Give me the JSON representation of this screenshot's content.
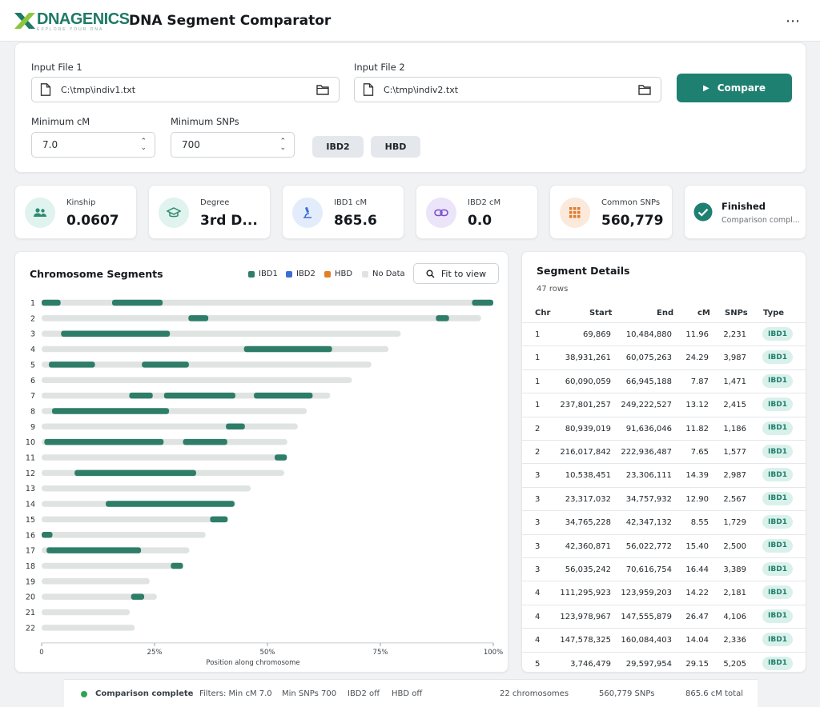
{
  "header": {
    "logo_name": "DNAGENICS",
    "logo_tagline": "EXPLORE YOUR DNA",
    "title": "DNA Segment Comparator",
    "menu_icon": "⋯"
  },
  "inputs": {
    "file1_label": "Input File 1",
    "file1_value": "C:\\tmp\\indiv1.txt",
    "file2_label": "Input File 2",
    "file2_value": "C:\\tmp\\indiv2.txt",
    "compare_label": "Compare",
    "min_cm_label": "Minimum cM",
    "min_cm_value": "7.0",
    "min_snps_label": "Minimum SNPs",
    "min_snps_value": "700",
    "ibd2_chip": "IBD2",
    "hbd_chip": "HBD"
  },
  "stats": [
    {
      "label": "Kinship",
      "value": "0.0607",
      "icon": "people-icon",
      "color": "#e0f3ee"
    },
    {
      "label": "Degree",
      "value": "3rd D...",
      "icon": "graduation-cap-icon",
      "color": "#e0f3ee"
    },
    {
      "label": "IBD1 cM",
      "value": "865.6",
      "icon": "microscope-icon",
      "color": "#e3ecfb"
    },
    {
      "label": "IBD2 cM",
      "value": "0.0",
      "icon": "link-icon",
      "color": "#ece4f8"
    },
    {
      "label": "Common SNPs",
      "value": "560,779",
      "icon": "grid-icon",
      "color": "#fbe9dc"
    }
  ],
  "status_card": {
    "title": "Finished",
    "subtitle": "Comparison compl..."
  },
  "chart_panel": {
    "title": "Chromosome Segments",
    "fit_label": "Fit to view",
    "legend": [
      {
        "name": "IBD1",
        "color": "#2e7d68"
      },
      {
        "name": "IBD2",
        "color": "#3b6fd6"
      },
      {
        "name": "HBD",
        "color": "#e0802a"
      },
      {
        "name": "No Data",
        "color": "#dfe3e2"
      }
    ]
  },
  "chart_data": {
    "type": "bar",
    "xlabel": "Position along chromosome",
    "xticks": [
      "0",
      "25%",
      "50%",
      "75%",
      "100%"
    ],
    "xlim": [
      0,
      100
    ],
    "colors": {
      "bar": "#dfe3e2",
      "ibd1": "#2e7d68"
    },
    "chromosomes": [
      {
        "name": "1",
        "length": 100,
        "segments": [
          [
            0,
            4.2
          ],
          [
            15.6,
            26.8
          ],
          [
            95.3,
            100
          ]
        ]
      },
      {
        "name": "2",
        "length": 97.3,
        "segments": [
          [
            32.5,
            36.9
          ],
          [
            87.3,
            90.2
          ]
        ]
      },
      {
        "name": "3",
        "length": 79.5,
        "segments": [
          [
            4.3,
            28.4
          ]
        ]
      },
      {
        "name": "4",
        "length": 76.8,
        "segments": [
          [
            44.8,
            64.3
          ]
        ]
      },
      {
        "name": "5",
        "length": 73.0,
        "segments": [
          [
            1.6,
            11.8
          ],
          [
            22.2,
            32.6
          ]
        ]
      },
      {
        "name": "6",
        "length": 68.7,
        "segments": []
      },
      {
        "name": "7",
        "length": 63.9,
        "segments": [
          [
            19.4,
            24.6
          ],
          [
            27.1,
            42.9
          ],
          [
            47.0,
            60.0
          ]
        ]
      },
      {
        "name": "8",
        "length": 58.7,
        "segments": [
          [
            2.3,
            28.2
          ]
        ]
      },
      {
        "name": "9",
        "length": 56.7,
        "segments": [
          [
            40.8,
            45.0
          ]
        ]
      },
      {
        "name": "10",
        "length": 54.4,
        "segments": [
          [
            0.6,
            27.0
          ],
          [
            31.3,
            41.1
          ]
        ]
      },
      {
        "name": "11",
        "length": 54.3,
        "segments": [
          [
            51.6,
            54.3
          ]
        ]
      },
      {
        "name": "12",
        "length": 53.7,
        "segments": [
          [
            7.3,
            34.2
          ]
        ]
      },
      {
        "name": "13",
        "length": 46.3,
        "segments": []
      },
      {
        "name": "14",
        "length": 42.9,
        "segments": [
          [
            14.2,
            42.7
          ]
        ]
      },
      {
        "name": "15",
        "length": 41.2,
        "segments": [
          [
            37.3,
            41.2
          ]
        ]
      },
      {
        "name": "16",
        "length": 36.3,
        "segments": [
          [
            0,
            2.4
          ]
        ]
      },
      {
        "name": "17",
        "length": 32.7,
        "segments": [
          [
            1.1,
            22.0
          ]
        ]
      },
      {
        "name": "18",
        "length": 31.3,
        "segments": [
          [
            28.6,
            31.3
          ]
        ]
      },
      {
        "name": "19",
        "length": 23.9,
        "segments": []
      },
      {
        "name": "20",
        "length": 25.5,
        "segments": [
          [
            19.8,
            22.7
          ]
        ]
      },
      {
        "name": "21",
        "length": 19.5,
        "segments": []
      },
      {
        "name": "22",
        "length": 20.6,
        "segments": []
      }
    ]
  },
  "table": {
    "title": "Segment Details",
    "subtitle": "47 rows",
    "headers": [
      "Chr",
      "Start",
      "End",
      "cM",
      "SNPs",
      "Type"
    ],
    "rows": [
      [
        "1",
        "69,869",
        "10,484,880",
        "11.96",
        "2,231",
        "IBD1"
      ],
      [
        "1",
        "38,931,261",
        "60,075,263",
        "24.29",
        "3,987",
        "IBD1"
      ],
      [
        "1",
        "60,090,059",
        "66,945,188",
        "7.87",
        "1,471",
        "IBD1"
      ],
      [
        "1",
        "237,801,257",
        "249,222,527",
        "13.12",
        "2,415",
        "IBD1"
      ],
      [
        "2",
        "80,939,019",
        "91,636,046",
        "11.82",
        "1,186",
        "IBD1"
      ],
      [
        "2",
        "216,017,842",
        "222,936,487",
        "7.65",
        "1,577",
        "IBD1"
      ],
      [
        "3",
        "10,538,451",
        "23,306,111",
        "14.39",
        "2,987",
        "IBD1"
      ],
      [
        "3",
        "23,317,032",
        "34,757,932",
        "12.90",
        "2,567",
        "IBD1"
      ],
      [
        "3",
        "34,765,228",
        "42,347,132",
        "8.55",
        "1,729",
        "IBD1"
      ],
      [
        "3",
        "42,360,871",
        "56,022,772",
        "15.40",
        "2,500",
        "IBD1"
      ],
      [
        "3",
        "56,035,242",
        "70,616,754",
        "16.44",
        "3,389",
        "IBD1"
      ],
      [
        "4",
        "111,295,923",
        "123,959,203",
        "14.22",
        "2,181",
        "IBD1"
      ],
      [
        "4",
        "123,978,967",
        "147,555,879",
        "26.47",
        "4,106",
        "IBD1"
      ],
      [
        "4",
        "147,578,325",
        "160,084,403",
        "14.04",
        "2,336",
        "IBD1"
      ],
      [
        "5",
        "3,746,479",
        "29,597,954",
        "29.15",
        "5,205",
        "IBD1"
      ]
    ]
  },
  "footer": {
    "status": "Comparison complete",
    "status_color": "#2ea44f",
    "filters": "Filters: Min cM 7.0",
    "min_snps": "Min SNPs 700",
    "ibd2": "IBD2 off",
    "hbd": "HBD off",
    "chromosomes": "22 chromosomes",
    "snps": "560,779 SNPs",
    "total": "865.6 cM total"
  }
}
